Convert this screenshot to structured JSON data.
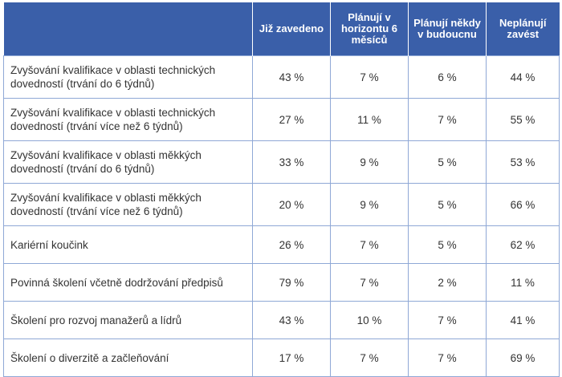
{
  "headers": [
    "",
    "Již zavedeno",
    "Plánují v horizontu 6 měsíců",
    "Plánují někdy v budoucnu",
    "Neplánují zavést"
  ],
  "rows": [
    {
      "label": "Zvyšování kvalifikace v oblasti technických dovedností (trvání do 6 týdnů)",
      "values": [
        "43 %",
        "7 %",
        "6 %",
        "44 %"
      ]
    },
    {
      "label": "Zvyšování kvalifikace v oblasti technických dovedností (trvání více než 6 týdnů)",
      "values": [
        "27 %",
        "11 %",
        "7 %",
        "55 %"
      ]
    },
    {
      "label": "Zvyšování kvalifikace v oblasti měkkých dovedností (trvání do 6 týdnů)",
      "values": [
        "33 %",
        "9 %",
        "5 %",
        "53 %"
      ]
    },
    {
      "label": "Zvyšování kvalifikace v oblasti měkkých dovedností (trvání více než 6 týdnů)",
      "values": [
        "20 %",
        "9 %",
        "5 %",
        "66 %"
      ]
    },
    {
      "label": "Kariérní koučink",
      "values": [
        "26 %",
        "7 %",
        "5 %",
        "62 %"
      ]
    },
    {
      "label": "Povinná školení včetně dodržování předpisů",
      "values": [
        "79 %",
        "7 %",
        "2 %",
        "11 %"
      ]
    },
    {
      "label": "Školení pro rozvoj manažerů a lídrů",
      "values": [
        "43 %",
        "10 %",
        "7 %",
        "41 %"
      ]
    },
    {
      "label": "Školení o diverzitě a začleňování",
      "values": [
        "17 %",
        "7 %",
        "7 %",
        "69 %"
      ]
    }
  ],
  "colors": {
    "header_bg": "#3a5fa9",
    "border": "#8fa8d6",
    "text": "#333333"
  }
}
